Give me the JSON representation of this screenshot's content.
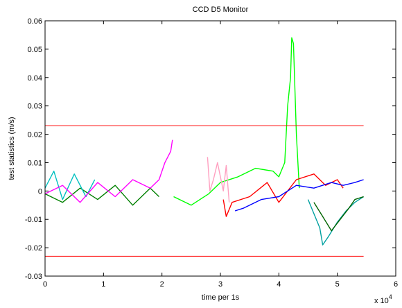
{
  "chart_data": {
    "type": "line",
    "title": "CCD D5 Monitor",
    "xlabel": "time per 1s",
    "ylabel": "test statistics (m/s)",
    "x_multiplier_label": "x 10",
    "x_multiplier_exponent": "4",
    "xlim": [
      0,
      6
    ],
    "ylim": [
      -0.03,
      0.06
    ],
    "x_ticks": [
      0,
      1,
      2,
      3,
      4,
      5,
      6
    ],
    "x_tick_labels": [
      "0",
      "1",
      "2",
      "3",
      "4",
      "5",
      "6"
    ],
    "y_ticks": [
      -0.03,
      -0.02,
      -0.01,
      0,
      0.01,
      0.02,
      0.03,
      0.04,
      0.05,
      0.06
    ],
    "y_tick_labels": [
      "-0.03",
      "-0.02",
      "-0.01",
      "0",
      "0.01",
      "0.02",
      "0.03",
      "0.04",
      "0.05",
      "0.06"
    ],
    "grid": false,
    "thresholds": [
      {
        "y": 0.023,
        "x": [
          0,
          5.45
        ],
        "color": "#ff0000"
      },
      {
        "y": -0.023,
        "x": [
          0,
          5.45
        ],
        "color": "#ff0000"
      }
    ],
    "series": [
      {
        "color": "#008000",
        "x": [
          0,
          0.3,
          0.6,
          0.9,
          1.2,
          1.5,
          1.8,
          1.95
        ],
        "y": [
          -0.001,
          -0.004,
          0.001,
          -0.003,
          0.002,
          -0.005,
          0.001,
          -0.002
        ]
      },
      {
        "color": "#00c0c0",
        "x": [
          0,
          0.15,
          0.3,
          0.5,
          0.7,
          0.85
        ],
        "y": [
          0.001,
          0.007,
          -0.003,
          0.006,
          -0.002,
          0.004
        ]
      },
      {
        "color": "#ff00ff",
        "x": [
          0,
          0.3,
          0.6,
          0.9,
          1.2,
          1.5,
          1.8,
          1.95,
          2.05,
          2.15,
          2.18
        ],
        "y": [
          -0.001,
          0.002,
          -0.004,
          0.003,
          -0.002,
          0.004,
          0.001,
          0.004,
          0.01,
          0.014,
          0.018
        ]
      },
      {
        "color": "#00ff00",
        "x": [
          2.2,
          2.5,
          2.8,
          3.0,
          3.3,
          3.6,
          3.9,
          4.0,
          4.1,
          4.15,
          4.2,
          4.22,
          4.25,
          4.3,
          4.35
        ],
        "y": [
          -0.002,
          -0.005,
          -0.001,
          0.003,
          0.005,
          0.008,
          0.007,
          0.005,
          0.01,
          0.03,
          0.04,
          0.054,
          0.052,
          0.02,
          0.001
        ]
      },
      {
        "color": "#ffa0c0",
        "x": [
          2.78,
          2.82,
          2.88,
          2.95,
          3.05,
          3.1,
          3.15
        ],
        "y": [
          0.012,
          0.0,
          0.004,
          0.01,
          0.0,
          0.009,
          -0.004
        ]
      },
      {
        "color": "#ff0000",
        "x": [
          3.05,
          3.1,
          3.2,
          3.5,
          3.8,
          4.0,
          4.3,
          4.6,
          4.8,
          5.0,
          5.1
        ],
        "y": [
          -0.003,
          -0.009,
          -0.004,
          -0.002,
          0.003,
          -0.004,
          0.004,
          0.006,
          0.002,
          0.004,
          0.001
        ]
      },
      {
        "color": "#0000ff",
        "x": [
          3.25,
          3.4,
          3.7,
          4.0,
          4.3,
          4.6,
          4.9,
          5.1,
          5.3,
          5.45
        ],
        "y": [
          -0.007,
          -0.006,
          -0.003,
          -0.002,
          0.002,
          0.001,
          0.003,
          0.002,
          0.003,
          0.004
        ]
      },
      {
        "color": "#00a0a0",
        "x": [
          4.5,
          4.6,
          4.7,
          4.75,
          4.85,
          5.0,
          5.15,
          5.3,
          5.45
        ],
        "y": [
          -0.003,
          -0.008,
          -0.013,
          -0.019,
          -0.016,
          -0.011,
          -0.007,
          -0.004,
          -0.002
        ]
      },
      {
        "color": "#006400",
        "x": [
          4.6,
          4.75,
          4.9,
          5.05,
          5.2,
          5.3,
          5.45
        ],
        "y": [
          -0.004,
          -0.009,
          -0.014,
          -0.01,
          -0.006,
          -0.003,
          -0.002
        ]
      }
    ]
  }
}
